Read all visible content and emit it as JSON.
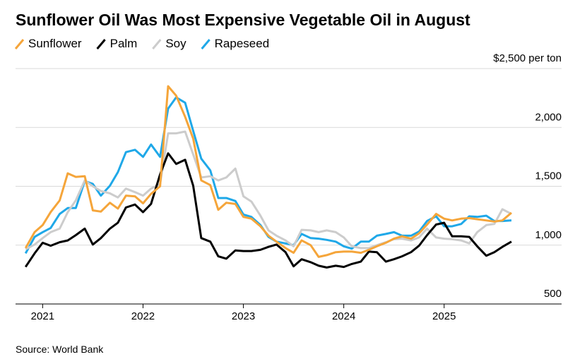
{
  "chart_data": {
    "type": "line",
    "title": "Sunflower Oil Was Most Expensive Vegetable Oil in August",
    "source": "Source: World Bank",
    "x": [
      2020.83,
      2020.92,
      2021,
      2021.08,
      2021.17,
      2021.25,
      2021.33,
      2021.42,
      2021.5,
      2021.58,
      2021.67,
      2021.75,
      2021.83,
      2021.92,
      2022,
      2022.08,
      2022.17,
      2022.25,
      2022.33,
      2022.42,
      2022.5,
      2022.58,
      2022.67,
      2022.75,
      2022.83,
      2022.92,
      2023,
      2023.08,
      2023.17,
      2023.25,
      2023.33,
      2023.42,
      2023.5,
      2023.58,
      2023.67,
      2023.75,
      2023.83,
      2023.92,
      2024,
      2024.08,
      2024.17,
      2024.25,
      2024.33,
      2024.42,
      2024.5,
      2024.58,
      2024.67,
      2024.75,
      2024.83,
      2024.92,
      2025,
      2025.08,
      2025.17,
      2025.25,
      2025.33,
      2025.42,
      2025.5,
      2025.58,
      2025.67
    ],
    "series": [
      {
        "name": "Sunflower",
        "color": "#f5a53a",
        "values": [
          975,
          1110,
          1170,
          1280,
          1380,
          1610,
          1580,
          1585,
          1295,
          1285,
          1360,
          1310,
          1420,
          1415,
          1355,
          1435,
          1500,
          2350,
          2270,
          2090,
          1905,
          1550,
          1510,
          1300,
          1360,
          1350,
          1240,
          1225,
          1160,
          1080,
          1030,
          975,
          935,
          1040,
          1000,
          900,
          915,
          940,
          945,
          945,
          935,
          960,
          990,
          1020,
          1055,
          1075,
          1055,
          1100,
          1175,
          1265,
          1225,
          1210,
          1225,
          1230,
          1220,
          1210,
          1200,
          1210,
          1275
        ]
      },
      {
        "name": "Palm",
        "color": "#000000",
        "values": [
          815,
          930,
          1020,
          995,
          1025,
          1040,
          1085,
          1140,
          1005,
          1060,
          1140,
          1190,
          1320,
          1345,
          1280,
          1350,
          1600,
          1780,
          1690,
          1725,
          1505,
          1060,
          1030,
          905,
          885,
          955,
          950,
          950,
          960,
          985,
          1005,
          940,
          820,
          880,
          855,
          825,
          810,
          825,
          815,
          840,
          860,
          945,
          940,
          860,
          880,
          905,
          940,
          995,
          1085,
          1175,
          1190,
          1075,
          1075,
          1070,
          990,
          910,
          940,
          985,
          1030
        ]
      },
      {
        "name": "Soy",
        "color": "#cccccc",
        "values": [
          965,
          1005,
          1060,
          1110,
          1140,
          1280,
          1380,
          1550,
          1500,
          1460,
          1440,
          1405,
          1480,
          1450,
          1420,
          1480,
          1520,
          1950,
          1950,
          1965,
          1770,
          1575,
          1585,
          1550,
          1575,
          1650,
          1415,
          1370,
          1250,
          1125,
          1080,
          1040,
          990,
          1130,
          1125,
          1110,
          1125,
          1110,
          1065,
          990,
          975,
          975,
          1000,
          1025,
          1050,
          1055,
          1040,
          1065,
          1140,
          1065,
          1055,
          1050,
          1040,
          1015,
          1110,
          1170,
          1180,
          1305,
          1265
        ]
      },
      {
        "name": "Rapeseed",
        "color": "#1fa8e8",
        "values": [
          930,
          1070,
          1110,
          1145,
          1265,
          1315,
          1315,
          1545,
          1520,
          1420,
          1505,
          1620,
          1790,
          1810,
          1750,
          1855,
          1750,
          2160,
          2255,
          2210,
          1970,
          1735,
          1635,
          1400,
          1400,
          1375,
          1260,
          1240,
          1170,
          1070,
          1030,
          1015,
          1000,
          1095,
          1060,
          1055,
          1045,
          1030,
          990,
          970,
          1030,
          1030,
          1080,
          1095,
          1110,
          1080,
          1080,
          1115,
          1205,
          1245,
          1160,
          1160,
          1180,
          1245,
          1240,
          1250,
          1205,
          1205,
          1210
        ]
      }
    ],
    "xlim": [
      2020.73,
      2026.17
    ],
    "xticks": [
      2021,
      2022,
      2023,
      2024,
      2025
    ],
    "ylim": [
      500,
      2500
    ],
    "yticks": [
      500,
      {
        "value": 1000,
        "label": "1,000"
      },
      {
        "value": 1500,
        "label": "1,500"
      },
      {
        "value": 2000,
        "label": "2,000"
      },
      {
        "value": 2500,
        "label": "$2,500 per ton"
      }
    ],
    "grid": true
  }
}
